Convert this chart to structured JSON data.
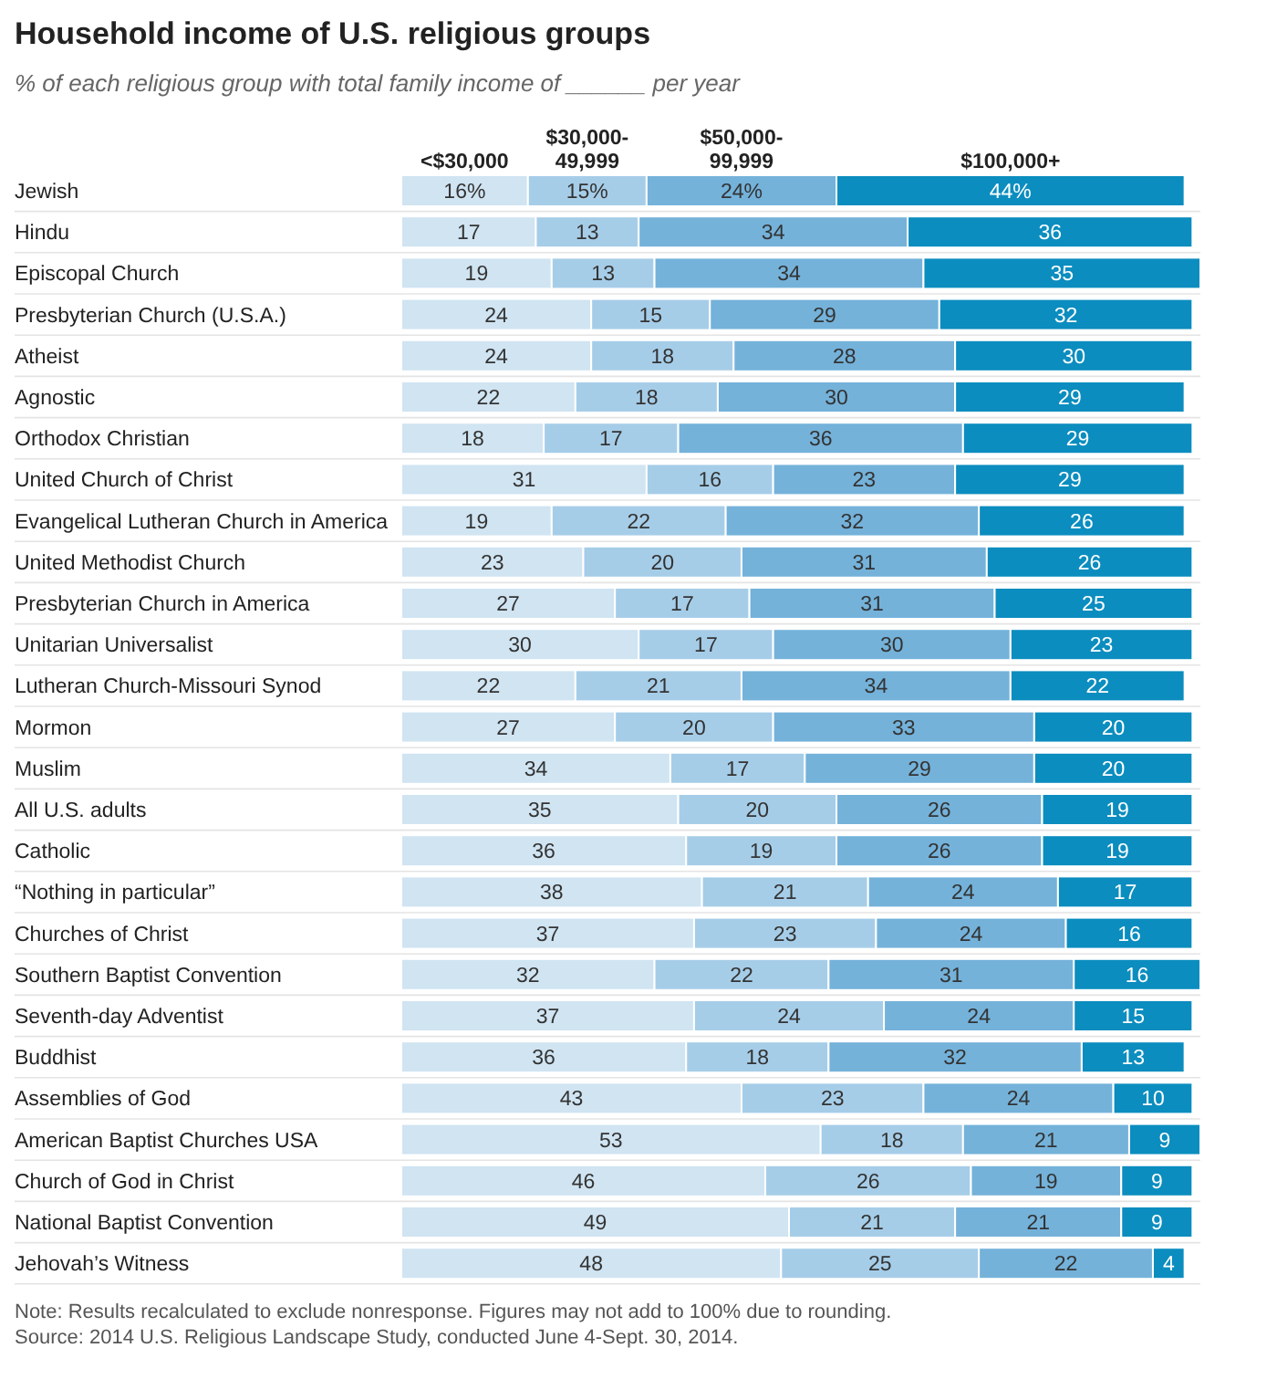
{
  "chart_data": {
    "type": "bar",
    "orientation": "horizontal",
    "stacked": true,
    "title": "Household income of U.S. religious groups",
    "subtitle": "% of each religious group with total family income of ______ per year",
    "legend": "top",
    "xlim": [
      0,
      101
    ],
    "categories": [
      "Jewish",
      "Hindu",
      "Episcopal Church",
      "Presbyterian Church (U.S.A.)",
      "Atheist",
      "Agnostic",
      "Orthodox Christian",
      "United Church of Christ",
      "Evangelical Lutheran Church in America",
      "United Methodist Church",
      "Presbyterian Church in America",
      "Unitarian Universalist",
      "Lutheran Church-Missouri Synod",
      "Mormon",
      "Muslim",
      "All U.S. adults",
      "Catholic",
      "“Nothing in particular”",
      "Churches of Christ",
      "Southern Baptist Convention",
      "Seventh-day Adventist",
      "Buddhist",
      "Assemblies of God",
      "American Baptist Churches USA",
      "Church of God in Christ",
      "National Baptist Convention",
      "Jehovah’s Witness"
    ],
    "series": [
      {
        "name": "<$30,000",
        "color": "#d0e4f2",
        "values": [
          16,
          17,
          19,
          24,
          24,
          22,
          18,
          31,
          19,
          23,
          27,
          30,
          22,
          27,
          34,
          35,
          36,
          38,
          37,
          32,
          37,
          36,
          43,
          53,
          46,
          49,
          48
        ],
        "value_labels": [
          "16%",
          "17",
          "19",
          "24",
          "24",
          "22",
          "18",
          "31",
          "19",
          "23",
          "27",
          "30",
          "22",
          "27",
          "34",
          "35",
          "36",
          "38",
          "37",
          "32",
          "37",
          "36",
          "43",
          "53",
          "46",
          "49",
          "48"
        ]
      },
      {
        "name": "$30,000-49,999",
        "color": "#a6cde8",
        "values": [
          15,
          13,
          13,
          15,
          18,
          18,
          17,
          16,
          22,
          20,
          17,
          17,
          21,
          20,
          17,
          20,
          19,
          21,
          23,
          22,
          24,
          18,
          23,
          18,
          26,
          21,
          25
        ],
        "value_labels": [
          "15%",
          "13",
          "13",
          "15",
          "18",
          "18",
          "17",
          "16",
          "22",
          "20",
          "17",
          "17",
          "21",
          "20",
          "17",
          "20",
          "19",
          "21",
          "23",
          "22",
          "24",
          "18",
          "23",
          "18",
          "26",
          "21",
          "25"
        ]
      },
      {
        "name": "$50,000-99,999",
        "color": "#74b2da",
        "values": [
          24,
          34,
          34,
          29,
          28,
          30,
          36,
          23,
          32,
          31,
          31,
          30,
          34,
          33,
          29,
          26,
          26,
          24,
          24,
          31,
          24,
          32,
          24,
          21,
          19,
          21,
          22
        ],
        "value_labels": [
          "24%",
          "34",
          "34",
          "29",
          "28",
          "30",
          "36",
          "23",
          "32",
          "31",
          "31",
          "30",
          "34",
          "33",
          "29",
          "26",
          "26",
          "24",
          "24",
          "31",
          "24",
          "32",
          "24",
          "21",
          "19",
          "21",
          "22"
        ]
      },
      {
        "name": "$100,000+",
        "color": "#0b8dbf",
        "values": [
          44,
          36,
          35,
          32,
          30,
          29,
          29,
          29,
          26,
          26,
          25,
          23,
          22,
          20,
          20,
          19,
          19,
          17,
          16,
          16,
          15,
          13,
          10,
          9,
          9,
          9,
          4
        ],
        "value_labels": [
          "44%",
          "36",
          "35",
          "32",
          "30",
          "29",
          "29",
          "29",
          "26",
          "26",
          "25",
          "23",
          "22",
          "20",
          "20",
          "19",
          "19",
          "17",
          "16",
          "16",
          "15",
          "13",
          "10",
          "9",
          "9",
          "9",
          "4"
        ]
      }
    ],
    "annotations": [
      "Note: Results recalculated to exclude nonresponse. Figures may not add to 100% due to rounding.",
      "Source: 2014 U.S. Religious Landscape Study, conducted June 4-Sept. 30, 2014."
    ]
  }
}
